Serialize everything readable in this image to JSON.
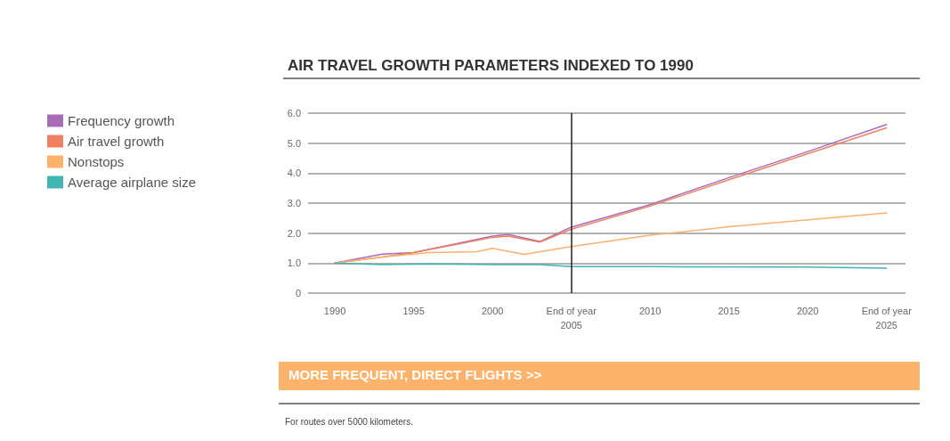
{
  "chart_data": {
    "type": "line",
    "title": "AIR TRAVEL GROWTH PARAMETERS INDEXED TO 1990",
    "series": [
      {
        "name": "Frequency growth",
        "color": "#a86cb8",
        "x": [
          1990,
          1993,
          1995,
          2000,
          2001,
          2003,
          2005,
          2010,
          2015,
          2020,
          2025
        ],
        "values": [
          1.0,
          1.3,
          1.35,
          1.9,
          1.95,
          1.72,
          2.2,
          2.95,
          3.85,
          4.72,
          5.62
        ]
      },
      {
        "name": "Air travel growth",
        "color": "#f08060",
        "x": [
          1990,
          1993,
          1995,
          2000,
          2001,
          2003,
          2005,
          2010,
          2015,
          2020,
          2025
        ],
        "values": [
          1.0,
          1.2,
          1.35,
          1.86,
          1.9,
          1.7,
          2.13,
          2.9,
          3.78,
          4.65,
          5.51
        ]
      },
      {
        "name": "Nonstops",
        "color": "#fbb26a",
        "x": [
          1990,
          1993,
          1995,
          1996,
          1999,
          2000,
          2002,
          2005,
          2010,
          2015,
          2020,
          2025
        ],
        "values": [
          1.0,
          1.2,
          1.3,
          1.35,
          1.38,
          1.49,
          1.29,
          1.55,
          1.93,
          2.21,
          2.44,
          2.67
        ]
      },
      {
        "name": "Average airplane size",
        "color": "#3fb5b5",
        "x": [
          1990,
          1993,
          1996,
          2000,
          2003,
          2005,
          2010,
          2020,
          2025
        ],
        "values": [
          1.0,
          0.95,
          0.97,
          0.95,
          0.95,
          0.88,
          0.88,
          0.87,
          0.83
        ]
      }
    ],
    "xlim": [
      1988.3,
      2026.2
    ],
    "xticks": [
      1990,
      1995,
      2000,
      {
        "value": 2005,
        "label": "End of year\n2005"
      },
      2010,
      2015,
      2020,
      {
        "value": 2025,
        "label": "End of year\n2025"
      }
    ],
    "ylim": [
      0,
      6
    ],
    "yticks": [
      {
        "value": 0,
        "label": "0"
      },
      {
        "value": 1,
        "label": "1.0"
      },
      {
        "value": 2,
        "label": "2.0"
      },
      {
        "value": 3,
        "label": "3.0"
      },
      {
        "value": 4,
        "label": "4.0"
      },
      {
        "value": 5,
        "label": "5.0"
      },
      {
        "value": 6,
        "label": "6.0"
      }
    ],
    "ref_lines": [
      {
        "axis": "x",
        "value": 2005,
        "color": "#222222"
      }
    ],
    "annotations": [
      "MORE FREQUENT, DIRECT FLIGHTS >>",
      "For routes over 5000 kilometers."
    ],
    "grid": "y",
    "legend": "left",
    "marker": "none",
    "line_style": "solid"
  }
}
